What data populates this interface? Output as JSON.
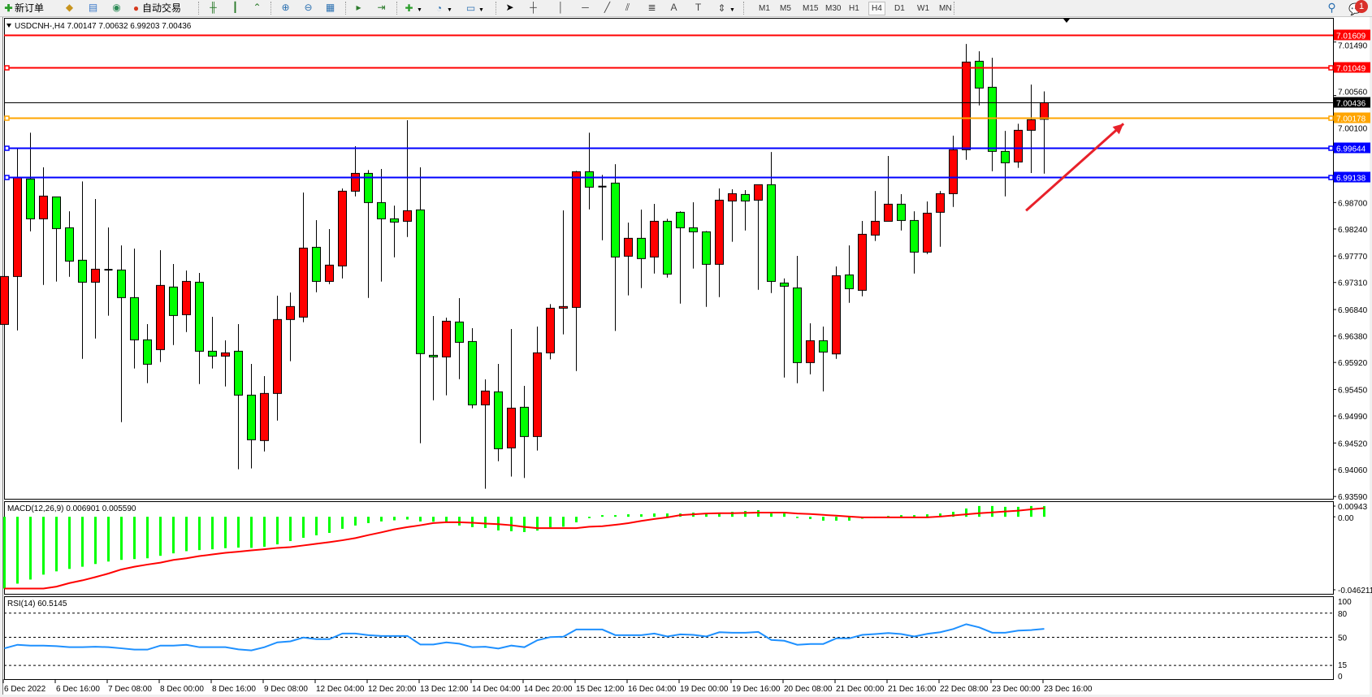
{
  "toolbar": {
    "new_order": "新订单",
    "auto_trading": "自动交易",
    "timeframes": [
      "M1",
      "M5",
      "M15",
      "M30",
      "H1",
      "H4",
      "D1",
      "W1",
      "MN"
    ],
    "active_timeframe": "H4",
    "notification_count": "1"
  },
  "chart_data": {
    "type": "candlestick",
    "symbol_header": "USDCNH-,H4  7.00147 7.00632 6.99203 7.00436",
    "timeframe": "H4",
    "colors": {
      "bull": "#ff0000",
      "bear": "#00ff00",
      "outline": "#000000",
      "background": "#ffffff"
    },
    "ylim": [
      6.9355,
      7.0191
    ],
    "price_ticks": [
      "7.01490",
      "7.00560",
      "7.00100",
      "6.98700",
      "6.98240",
      "6.97770",
      "6.97310",
      "6.96840",
      "6.96380",
      "6.95920",
      "6.95450",
      "6.94990",
      "6.94520",
      "6.94060",
      "6.93590"
    ],
    "time_labels": [
      "6 Dec 2022",
      "6 Dec 16:00",
      "7 Dec 08:00",
      "8 Dec 00:00",
      "8 Dec 16:00",
      "9 Dec 08:00",
      "12 Dec 04:00",
      "12 Dec 20:00",
      "13 Dec 12:00",
      "14 Dec 04:00",
      "14 Dec 20:00",
      "15 Dec 12:00",
      "16 Dec 04:00",
      "19 Dec 00:00",
      "19 Dec 16:00",
      "20 Dec 08:00",
      "21 Dec 00:00",
      "21 Dec 16:00",
      "22 Dec 08:00",
      "23 Dec 00:00",
      "23 Dec 16:00"
    ],
    "time_label_every_bars": 4,
    "ohlc": [
      [
        6.96581,
        6.97795,
        6.94901,
        6.97414
      ],
      [
        6.97414,
        6.99641,
        6.96477,
        6.99137
      ],
      [
        6.99109,
        6.99914,
        6.982,
        6.98417
      ],
      [
        6.98417,
        6.99311,
        6.97268,
        6.98812
      ],
      [
        6.98798,
        6.98798,
        6.97325,
        6.98247
      ],
      [
        6.98261,
        6.98548,
        6.97409,
        6.97682
      ],
      [
        6.97697,
        6.99066,
        6.95983,
        6.97315
      ],
      [
        6.97315,
        6.9876,
        6.96336,
        6.97541
      ],
      [
        6.97532,
        6.98266,
        6.96732,
        6.97532
      ],
      [
        6.97527,
        6.97955,
        6.94882,
        6.97047
      ],
      [
        6.97047,
        6.97899,
        6.95814,
        6.96313
      ],
      [
        6.96313,
        6.96586,
        6.9556,
        6.95889
      ],
      [
        6.96143,
        6.97871,
        6.95927,
        6.97259
      ],
      [
        6.97231,
        6.97631,
        6.96223,
        6.96736
      ],
      [
        6.9675,
        6.97518,
        6.96449,
        6.97329
      ],
      [
        6.97315,
        6.97475,
        6.95545,
        6.96115
      ],
      [
        6.96115,
        6.96713,
        6.95814,
        6.9603
      ],
      [
        6.9603,
        6.96303,
        6.95503,
        6.96087
      ],
      [
        6.96115,
        6.96586,
        6.94063,
        6.95352
      ],
      [
        6.95352,
        6.95894,
        6.94077,
        6.94576
      ],
      [
        6.94562,
        6.95682,
        6.94373,
        6.95381
      ],
      [
        6.95381,
        6.9708,
        6.9491,
        6.96666
      ],
      [
        6.96666,
        6.97136,
        6.95941,
        6.96892
      ],
      [
        6.96708,
        6.98873,
        6.96619,
        6.97908
      ],
      [
        6.97922,
        6.98393,
        6.97141,
        6.97329
      ],
      [
        6.97329,
        6.98238,
        6.97282,
        6.97612
      ],
      [
        6.97598,
        6.98944,
        6.97381,
        6.98897
      ],
      [
        6.98897,
        6.99678,
        6.98807,
        6.99207
      ],
      [
        6.99207,
        6.99264,
        6.97042,
        6.98699
      ],
      [
        6.98699,
        6.99283,
        6.97325,
        6.98417
      ],
      [
        6.98417,
        6.98647,
        6.97748,
        6.9836
      ],
      [
        6.98374,
        7.0013,
        6.98101,
        6.98558
      ],
      [
        6.98572,
        6.99311,
        6.94515,
        6.96073
      ],
      [
        6.96044,
        6.96727,
        6.95263,
        6.96016
      ],
      [
        6.96016,
        6.96699,
        6.95348,
        6.96637
      ],
      [
        6.96623,
        6.97038,
        6.9563,
        6.9627
      ],
      [
        6.96284,
        6.96515,
        6.95122,
        6.95183
      ],
      [
        6.95183,
        6.95625,
        6.93724,
        6.95423
      ],
      [
        6.95409,
        6.95894,
        6.94204,
        6.9442
      ],
      [
        6.94435,
        6.96501,
        6.93936,
        6.95126
      ],
      [
        6.95141,
        6.95513,
        6.93912,
        6.94632
      ],
      [
        6.94632,
        6.96543,
        6.94388,
        6.96087
      ],
      [
        6.96087,
        6.96934,
        6.95974,
        6.96863
      ],
      [
        6.96863,
        6.98563,
        6.96407,
        6.96892
      ],
      [
        6.96877,
        6.9925,
        6.95771,
        6.99236
      ],
      [
        6.99236,
        6.99914,
        6.98581,
        6.98967
      ],
      [
        6.98977,
        6.99179,
        6.98045,
        6.98977
      ],
      [
        6.99038,
        6.99367,
        6.96468,
        6.97753
      ],
      [
        6.97767,
        6.98351,
        6.97085,
        6.98078
      ],
      [
        6.98078,
        6.98577,
        6.97212,
        6.97725
      ],
      [
        6.97753,
        6.98676,
        6.97466,
        6.98374
      ],
      [
        6.98374,
        6.98417,
        6.97395,
        6.97456
      ],
      [
        6.9853,
        6.98548,
        6.96943,
        6.98261
      ],
      [
        6.98261,
        6.98704,
        6.97551,
        6.98191
      ],
      [
        6.98191,
        6.98205,
        6.96887,
        6.97626
      ],
      [
        6.97626,
        6.98944,
        6.97056,
        6.98741
      ],
      [
        6.98727,
        6.9893,
        6.98017,
        6.98854
      ],
      [
        6.9884,
        6.98916,
        6.98214,
        6.98727
      ],
      [
        6.98741,
        6.9901,
        6.97183,
        6.9901
      ],
      [
        6.9901,
        6.99579,
        6.97127,
        6.97329
      ],
      [
        6.97301,
        6.97381,
        6.95658,
        6.97245
      ],
      [
        6.97216,
        6.97772,
        6.95559,
        6.95917
      ],
      [
        6.95917,
        6.966,
        6.95715,
        6.96298
      ],
      [
        6.96298,
        6.96543,
        6.95418,
        6.96101
      ],
      [
        6.96068,
        6.97588,
        6.95983,
        6.97428
      ],
      [
        6.97442,
        6.97955,
        6.96957,
        6.97202
      ],
      [
        6.97174,
        6.98379,
        6.9707,
        6.98148
      ],
      [
        6.98134,
        6.98901,
        6.98031,
        6.98374
      ],
      [
        6.98374,
        6.99509,
        6.98374,
        6.98671
      ],
      [
        6.98671,
        6.98845,
        6.98214,
        6.98388
      ],
      [
        6.98388,
        6.98548,
        6.97466,
        6.97838
      ],
      [
        6.97838,
        6.98718,
        6.97805,
        6.98515
      ],
      [
        6.9853,
        6.98901,
        6.97932,
        6.98854
      ],
      [
        6.98854,
        6.99862,
        6.98624,
        6.99617
      ],
      [
        6.99617,
        7.01457,
        6.99443,
        7.01142
      ],
      [
        7.01156,
        7.0133,
        7.00389,
        7.0069
      ],
      [
        7.00704,
        7.01217,
        6.99245,
        6.99589
      ],
      [
        6.99589,
        6.99946,
        6.98807,
        6.99391
      ],
      [
        6.99405,
        7.00069,
        6.99302,
        6.99956
      ],
      [
        6.99956,
        7.00751,
        6.99213,
        7.00139
      ],
      [
        7.00147,
        7.00632,
        6.99203,
        7.00436
      ]
    ],
    "current_price": {
      "value": "7.00436",
      "color": "#000000"
    },
    "levels": [
      {
        "price": "7.01609",
        "color": "#ff0000",
        "selected": false
      },
      {
        "price": "7.01049",
        "color": "#ff0000",
        "selected": true
      },
      {
        "price": "7.00178",
        "color": "#ffa500",
        "selected": true
      },
      {
        "price": "6.99644",
        "color": "#0000ff",
        "selected": true
      },
      {
        "price": "6.99138",
        "color": "#0000ff",
        "selected": true
      }
    ],
    "annotation": {
      "type": "arrow",
      "color": "#e8212a",
      "from": {
        "bar": 78.6,
        "price": 6.9856
      },
      "to": {
        "bar": 86.1,
        "price": 7.0007
      }
    },
    "macd": {
      "label": "MACD(12,26,9) 0.006901 0.005590",
      "axis_labels": [
        "0.00943",
        "0.00",
        "-0.046211"
      ],
      "ylim": [
        -0.0495,
        0.01
      ],
      "hist_color": "#00ff00",
      "signal_color": "#ff0000",
      "histogram": [
        -0.0461,
        -0.04295,
        -0.04032,
        -0.03716,
        -0.03506,
        -0.03348,
        -0.03208,
        -0.03033,
        -0.02875,
        -0.0277,
        -0.02717,
        -0.02665,
        -0.02507,
        -0.02349,
        -0.02209,
        -0.02139,
        -0.02086,
        -0.02016,
        -0.01981,
        -0.01998,
        -0.01928,
        -0.01771,
        -0.0156,
        -0.0135,
        -0.01192,
        -0.01034,
        -0.00771,
        -0.00561,
        -0.00403,
        -0.00298,
        -0.00228,
        -0.00175,
        -0.00298,
        -0.00316,
        -0.00333,
        -0.00561,
        -0.00666,
        -0.00719,
        -0.00877,
        -0.00929,
        -0.00982,
        -0.00889,
        -0.00676,
        -0.0064,
        -0.00356,
        -0.00089,
        0.00107,
        0.00107,
        0.0016,
        0.0016,
        0.00213,
        0.00213,
        0.00213,
        0.00267,
        0.00213,
        0.00213,
        0.0032,
        0.00373,
        0.00427,
        0.00213,
        0.00213,
        -0.00036,
        -0.00142,
        -0.00249,
        -0.00249,
        -0.00249,
        -0.00124,
        -0.0001,
        0.00053,
        0.00107,
        0.00107,
        0.0016,
        0.00213,
        0.0032,
        0.00533,
        0.00693,
        0.00693,
        0.0064,
        0.0064,
        0.00693,
        0.006901
      ],
      "signal": [
        -0.0461,
        -0.0461,
        -0.0461,
        -0.0461,
        -0.04488,
        -0.0426,
        -0.04084,
        -0.03874,
        -0.03646,
        -0.03383,
        -0.03208,
        -0.03068,
        -0.02945,
        -0.0277,
        -0.02665,
        -0.02524,
        -0.02419,
        -0.02314,
        -0.02244,
        -0.02156,
        -0.02086,
        -0.01998,
        -0.01946,
        -0.01841,
        -0.01735,
        -0.0163,
        -0.01508,
        -0.01367,
        -0.01175,
        -0.00999,
        -0.00806,
        -0.00666,
        -0.00543,
        -0.00403,
        -0.00351,
        -0.00351,
        -0.00386,
        -0.00438,
        -0.00473,
        -0.00543,
        -0.00649,
        -0.00729,
        -0.00729,
        -0.00729,
        -0.00729,
        -0.0064,
        -0.00605,
        -0.00516,
        -0.00409,
        -0.00267,
        -0.00142,
        -0.00036,
        0.00107,
        0.0016,
        0.00213,
        0.00231,
        0.00231,
        0.00249,
        0.00267,
        0.00267,
        0.00267,
        0.00213,
        0.00178,
        0.00124,
        0.00071,
        0.00018,
        -0.00036,
        -0.00036,
        -0.00036,
        -0.00036,
        -0.00036,
        -0.00036,
        0.00018,
        0.00089,
        0.0016,
        0.00231,
        0.00284,
        0.00338,
        0.00391,
        0.0048,
        0.00559
      ]
    },
    "rsi": {
      "label": "RSI(14) 60.5145",
      "axis_labels": [
        "100",
        "80",
        "50",
        "15",
        "0"
      ],
      "levels": [
        80,
        50,
        15
      ],
      "ylim": [
        0,
        100
      ],
      "color": "#1e90ff",
      "values": [
        36.3,
        40.7,
        39.7,
        39.7,
        39.0,
        37.7,
        37.7,
        38.3,
        37.7,
        36.3,
        34.7,
        34.7,
        39.7,
        39.7,
        40.7,
        37.7,
        37.7,
        37.7,
        35.0,
        33.7,
        37.7,
        43.7,
        45.0,
        49.7,
        47.7,
        47.7,
        54.7,
        54.7,
        52.7,
        51.7,
        51.7,
        51.7,
        41.0,
        41.0,
        43.7,
        42.0,
        37.7,
        38.3,
        36.0,
        39.7,
        37.7,
        46.3,
        50.3,
        50.7,
        59.7,
        59.7,
        59.7,
        52.7,
        52.7,
        52.7,
        54.7,
        51.0,
        53.7,
        53.0,
        51.0,
        56.3,
        55.7,
        55.7,
        56.7,
        46.7,
        45.7,
        40.7,
        41.7,
        41.7,
        48.7,
        48.7,
        53.0,
        54.0,
        55.3,
        54.0,
        51.0,
        54.3,
        56.3,
        60.3,
        66.3,
        62.3,
        55.7,
        55.7,
        58.3,
        59.0,
        60.5
      ]
    }
  }
}
